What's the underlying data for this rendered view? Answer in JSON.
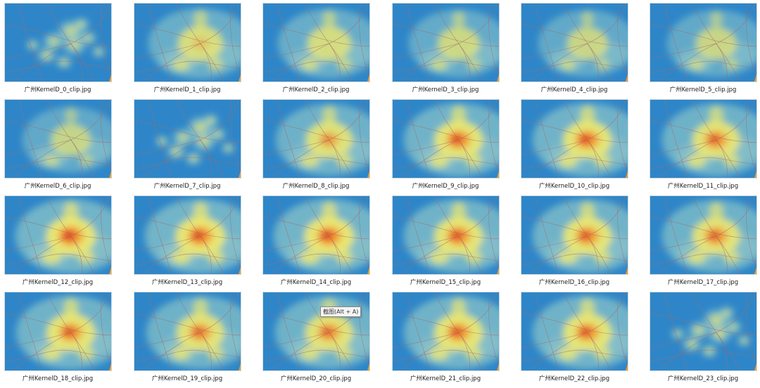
{
  "files": [
    {
      "name": "广州KernelD_0_clip.jpg",
      "level": 0.25,
      "hot": 0.0,
      "pattern": "scattered"
    },
    {
      "name": "广州KernelD_1_clip.jpg",
      "level": 0.75,
      "hot": 0.05,
      "pattern": "central"
    },
    {
      "name": "广州KernelD_2_clip.jpg",
      "level": 0.7,
      "hot": 0.0,
      "pattern": "central"
    },
    {
      "name": "广州KernelD_3_clip.jpg",
      "level": 0.6,
      "hot": 0.0,
      "pattern": "central"
    },
    {
      "name": "广州KernelD_4_clip.jpg",
      "level": 0.55,
      "hot": 0.0,
      "pattern": "central"
    },
    {
      "name": "广州KernelD_5_clip.jpg",
      "level": 0.55,
      "hot": 0.0,
      "pattern": "central"
    },
    {
      "name": "广州KernelD_6_clip.jpg",
      "level": 0.5,
      "hot": 0.0,
      "pattern": "central"
    },
    {
      "name": "广州KernelD_7_clip.jpg",
      "level": 0.3,
      "hot": 0.0,
      "pattern": "scattered"
    },
    {
      "name": "广州KernelD_8_clip.jpg",
      "level": 0.85,
      "hot": 0.5,
      "pattern": "central"
    },
    {
      "name": "广州KernelD_9_clip.jpg",
      "level": 0.95,
      "hot": 0.9,
      "pattern": "central"
    },
    {
      "name": "广州KernelD_10_clip.jpg",
      "level": 0.95,
      "hot": 0.9,
      "pattern": "central"
    },
    {
      "name": "广州KernelD_11_clip.jpg",
      "level": 0.9,
      "hot": 0.8,
      "pattern": "central"
    },
    {
      "name": "广州KernelD_12_clip.jpg",
      "level": 1.0,
      "hot": 1.0,
      "pattern": "central"
    },
    {
      "name": "广州KernelD_13_clip.jpg",
      "level": 1.0,
      "hot": 0.95,
      "pattern": "central"
    },
    {
      "name": "广州KernelD_14_clip.jpg",
      "level": 1.0,
      "hot": 0.95,
      "pattern": "central"
    },
    {
      "name": "广州KernelD_15_clip.jpg",
      "level": 0.95,
      "hot": 0.9,
      "pattern": "central"
    },
    {
      "name": "广州KernelD_16_clip.jpg",
      "level": 0.95,
      "hot": 0.85,
      "pattern": "central"
    },
    {
      "name": "广州KernelD_17_clip.jpg",
      "level": 0.9,
      "hot": 0.8,
      "pattern": "central"
    },
    {
      "name": "广州KernelD_18_clip.jpg",
      "level": 0.95,
      "hot": 0.85,
      "pattern": "central"
    },
    {
      "name": "广州KernelD_19_clip.jpg",
      "level": 0.9,
      "hot": 0.75,
      "pattern": "central"
    },
    {
      "name": "广州KernelD_20_clip.jpg",
      "level": 0.9,
      "hot": 0.75,
      "pattern": "central"
    },
    {
      "name": "广州KernelD_21_clip.jpg",
      "level": 0.95,
      "hot": 0.85,
      "pattern": "central"
    },
    {
      "name": "广州KernelD_22_clip.jpg",
      "level": 0.95,
      "hot": 0.85,
      "pattern": "central"
    },
    {
      "name": "广州KernelD_23_clip.jpg",
      "level": 0.35,
      "hot": 0.0,
      "pattern": "scattered"
    }
  ],
  "tooltip": {
    "text": "截图(Alt + A)"
  },
  "colors": {
    "water": "#2e86c8",
    "low": "#8fc7c9",
    "mid": "#f3ea6b",
    "high": "#f39a2e",
    "peak": "#e2381f",
    "road": "#a56a6a"
  }
}
